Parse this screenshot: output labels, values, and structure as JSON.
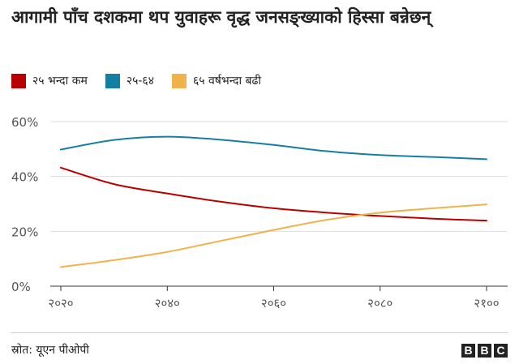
{
  "title": "आगामी पाँच दशकमा थप युवाहरू वृद्ध जनसङ्ख्याको हिस्सा बन्नेछन्",
  "source": "स्रोत: यूएन पीओपी",
  "brand": [
    "B",
    "B",
    "C"
  ],
  "chart_data": {
    "type": "line",
    "title": "आगामी पाँच दशकमा थप युवाहरू वृद्ध जनसङ्ख्याको हिस्सा बन्नेछन्",
    "xlabel": "",
    "ylabel": "",
    "x": [
      2020,
      2030,
      2040,
      2050,
      2060,
      2070,
      2080,
      2090,
      2100
    ],
    "xlim": [
      2020,
      2100
    ],
    "ylim": [
      0,
      60
    ],
    "y_ticks": [
      0,
      20,
      40,
      60
    ],
    "y_tick_labels": [
      "0%",
      "20%",
      "40%",
      "60%"
    ],
    "x_ticks": [
      2020,
      2040,
      2060,
      2080,
      2100
    ],
    "x_tick_labels": [
      "२०२०",
      "२०४०",
      "२०६०",
      "२०८०",
      "२१००"
    ],
    "grid": true,
    "legend_position": "top-left",
    "series": [
      {
        "name": "२५ भन्दा कम",
        "color": "#b80000",
        "values": [
          43.2,
          37.2,
          33.8,
          30.8,
          28.4,
          26.8,
          25.6,
          24.6,
          23.9
        ]
      },
      {
        "name": "२५-६४",
        "color": "#1380a1",
        "values": [
          49.8,
          53.3,
          54.5,
          53.4,
          51.5,
          49.2,
          47.8,
          47.1,
          46.3
        ]
      },
      {
        "name": "६५ वर्षभन्दा बढी",
        "color": "#f0b24a",
        "values": [
          7.0,
          9.5,
          12.5,
          16.5,
          20.5,
          24.2,
          26.8,
          28.4,
          29.8
        ]
      }
    ]
  }
}
